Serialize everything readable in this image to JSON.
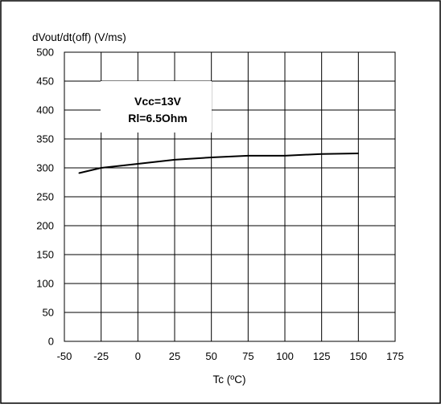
{
  "chart_data": {
    "type": "line",
    "ylabel": "dVout/dt(off) (V/ms)",
    "xlabel": "Tc (ºC)",
    "xlim": [
      -50,
      175
    ],
    "ylim": [
      0,
      500
    ],
    "x_ticks": [
      -50,
      -25,
      0,
      25,
      50,
      75,
      100,
      125,
      150,
      175
    ],
    "y_ticks": [
      0,
      50,
      100,
      150,
      200,
      250,
      300,
      350,
      400,
      450,
      500
    ],
    "grid": true,
    "annotation": [
      "Vcc=13V",
      "Rl=6.5Ohm"
    ],
    "series": [
      {
        "x": [
          -40,
          -25,
          0,
          25,
          50,
          75,
          100,
          125,
          150
        ],
        "y": [
          291,
          300,
          307,
          314,
          318,
          321,
          321,
          324,
          325
        ]
      }
    ],
    "colors": {
      "line": "#000000",
      "grid": "#000000",
      "frame": "#000000",
      "background": "#ffffff"
    }
  }
}
